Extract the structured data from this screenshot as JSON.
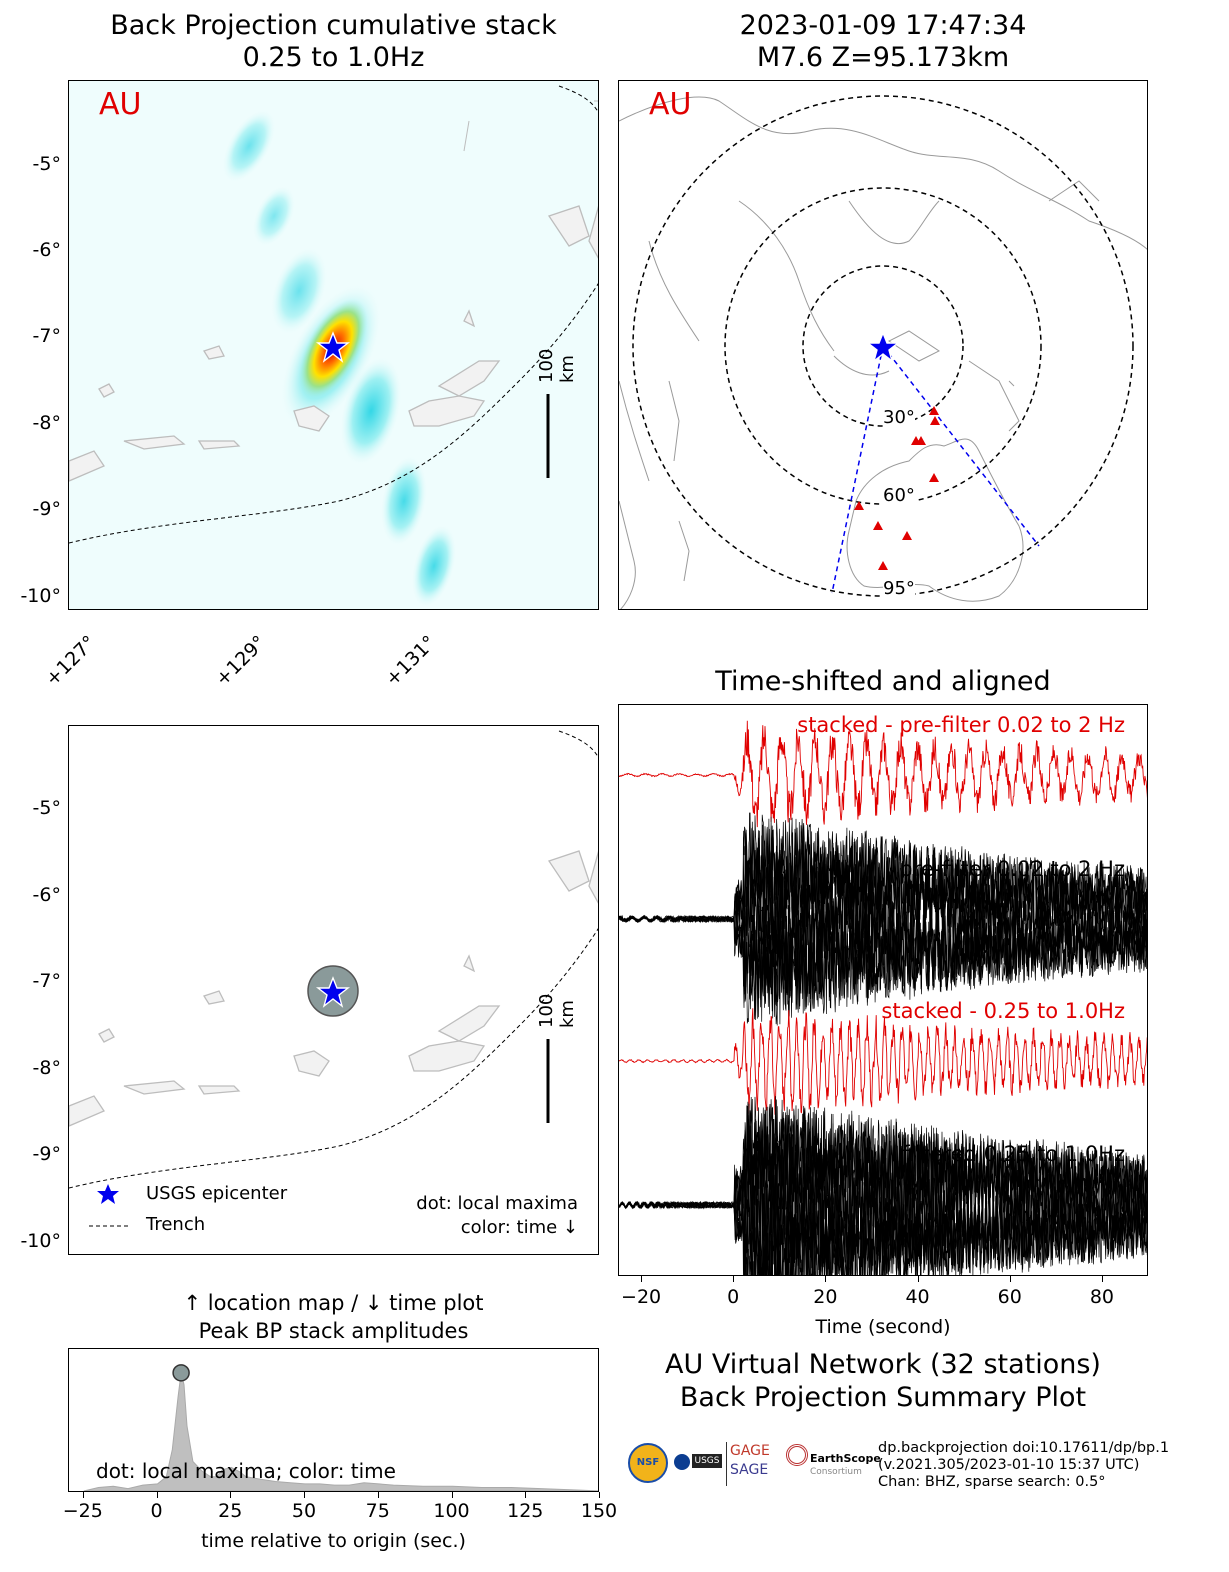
{
  "panel_bp": {
    "title": "Back Projection cumulative stack",
    "subtitle": "0.25 to 1.0Hz",
    "network_label": "AU",
    "scale_label": "100 km",
    "lat_ticks": [
      "-5°",
      "-6°",
      "-7°",
      "-8°",
      "-9°",
      "-10°"
    ],
    "lon_ticks": [
      "+127°",
      "+129°",
      "+131°"
    ]
  },
  "panel_global": {
    "title": "2023-01-09 17:47:34",
    "subtitle": "M7.6 Z=95.173km",
    "network_label": "AU",
    "ring_labels": [
      "30°",
      "60°",
      "95°"
    ]
  },
  "panel_location": {
    "scale_label": "100 km",
    "lat_ticks": [
      "-5°",
      "-6°",
      "-7°",
      "-8°",
      "-9°",
      "-10°"
    ],
    "legend": {
      "epicenter": "USGS epicenter",
      "trench": "Trench"
    },
    "note_line1": "dot: local maxima",
    "note_line2": "color: time ↓"
  },
  "panel_traces": {
    "title": "Time-shifted and aligned",
    "label_1": "stacked - pre-filter 0.02 to 2 Hz",
    "label_2": "pre-filter 0.02 to 2 Hz",
    "label_3": "stacked - 0.25 to 1.0Hz",
    "label_4": "filtered 0.25 to 1.0Hz",
    "xlabel": "Time (second)",
    "x_ticks": [
      "−20",
      "0",
      "20",
      "40",
      "60",
      "80"
    ]
  },
  "panel_peak": {
    "title_line1": "↑ location map / ↓ time plot",
    "title_line2": "Peak BP stack amplitudes",
    "note": "dot: local maxima; color: time",
    "xlabel": "time relative to origin (sec.)",
    "x_ticks": [
      "−25",
      "0",
      "25",
      "50",
      "75",
      "100",
      "125",
      "150"
    ]
  },
  "summary": {
    "line1": "AU Virtual Network (32 stations)",
    "line2": "Back Projection Summary Plot",
    "info1": "dp.backprojection doi:10.17611/dp/bp.1",
    "info2": "(v.2021.305/2023-01-10 15:37 UTC)",
    "info3": "Chan: BHZ, sparse search: 0.5°",
    "logo_gage1": "GAGE",
    "logo_gage2": "SAGE",
    "logo_es": "EarthScope",
    "logo_es2": "Consortium",
    "logo_nsf": "NSF",
    "logo_usgs": "USGS"
  },
  "colors": {
    "red": "#e00000",
    "blue": "#0000ee",
    "grey": "#bdbdbd"
  },
  "chart_data": [
    {
      "type": "heatmap",
      "title": "Back Projection cumulative stack",
      "subtitle": "0.25 to 1.0Hz",
      "xlim": [
        126.8,
        133.0
      ],
      "ylim": [
        -10.2,
        -4.2
      ],
      "peak_lon": 129.95,
      "peak_lat": -7.1
    },
    {
      "type": "line",
      "title": "Time-shifted and aligned",
      "xlabel": "Time (second)",
      "xlim": [
        -25,
        90
      ]
    },
    {
      "type": "area",
      "title": "Peak BP stack amplitudes",
      "xlabel": "time relative to origin (sec.)",
      "xlim": [
        -30,
        150
      ],
      "x": [
        -25,
        -20,
        -15,
        -10,
        -5,
        0,
        3,
        5,
        7,
        8,
        9,
        10,
        12,
        15,
        18,
        20,
        22,
        25,
        28,
        30,
        35,
        40,
        45,
        50,
        55,
        60,
        65,
        70,
        75,
        80,
        90,
        100,
        110,
        120,
        130,
        140,
        150
      ],
      "values": [
        0.0,
        0.03,
        0.04,
        0.02,
        0.05,
        0.06,
        0.12,
        0.35,
        0.8,
        1.0,
        0.9,
        0.55,
        0.25,
        0.17,
        0.12,
        0.12,
        0.18,
        0.2,
        0.16,
        0.12,
        0.1,
        0.08,
        0.07,
        0.06,
        0.06,
        0.05,
        0.05,
        0.07,
        0.06,
        0.05,
        0.04,
        0.04,
        0.03,
        0.03,
        0.02,
        0.01,
        0.0
      ],
      "ylim": [
        0,
        1.1
      ],
      "peak_x": 8
    }
  ]
}
